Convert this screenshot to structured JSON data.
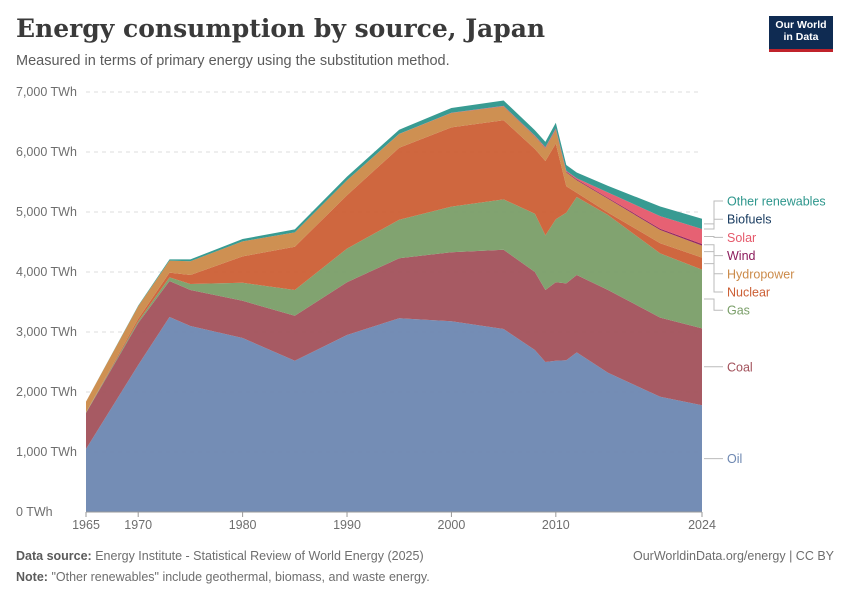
{
  "header": {
    "title": "Energy consumption by source, Japan",
    "subtitle": "Measured in terms of primary energy using the substitution method."
  },
  "logo": {
    "line1": "Our World",
    "line2": "in Data"
  },
  "footer": {
    "source_label": "Data source:",
    "source_text": "Energy Institute - Statistical Review of World Energy (2025)",
    "note_label": "Note:",
    "note_text": "\"Other renewables\" include geothermal, biomass, and waste energy.",
    "credit": "OurWorldinData.org/energy | CC BY"
  },
  "chart_data": {
    "type": "area",
    "stacked": true,
    "x_ticks": [
      1965,
      1970,
      1980,
      1990,
      2000,
      2010,
      2024
    ],
    "y_ticks": [
      0,
      1000,
      2000,
      3000,
      4000,
      5000,
      6000,
      7000
    ],
    "y_tick_labels": [
      "0 TWh",
      "1,000 TWh",
      "2,000 TWh",
      "3,000 TWh",
      "4,000 TWh",
      "5,000 TWh",
      "6,000 TWh",
      "7,000 TWh"
    ],
    "xlim": [
      1965,
      2024
    ],
    "ylim": [
      0,
      7000
    ],
    "grid": "horizontal dashed",
    "legend_placement": "right, labels at series end",
    "x": [
      1965,
      1970,
      1973,
      1975,
      1980,
      1985,
      1990,
      1995,
      2000,
      2005,
      2008,
      2009,
      2010,
      2011,
      2012,
      2015,
      2020,
      2024
    ],
    "series": [
      {
        "name": "Oil",
        "color": "#6d87b1",
        "values": [
          1050,
          2450,
          3250,
          3100,
          2900,
          2520,
          2950,
          3230,
          3180,
          3050,
          2700,
          2500,
          2520,
          2530,
          2660,
          2320,
          1920,
          1780
        ]
      },
      {
        "name": "Coal",
        "color": "#a2515b",
        "values": [
          600,
          700,
          600,
          600,
          620,
          750,
          880,
          1000,
          1150,
          1320,
          1300,
          1200,
          1310,
          1280,
          1290,
          1380,
          1320,
          1280
        ]
      },
      {
        "name": "Gas",
        "color": "#7a9e68",
        "values": [
          10,
          30,
          60,
          100,
          300,
          430,
          560,
          640,
          760,
          840,
          970,
          910,
          1050,
          1180,
          1300,
          1250,
          1070,
          980
        ]
      },
      {
        "name": "Nuclear",
        "color": "#cc5f35",
        "values": [
          0,
          40,
          80,
          150,
          440,
          720,
          890,
          1200,
          1320,
          1320,
          1080,
          1240,
          1260,
          440,
          70,
          40,
          170,
          200
        ]
      },
      {
        "name": "Hydropower",
        "color": "#cb8a49",
        "values": [
          180,
          210,
          200,
          230,
          250,
          240,
          250,
          230,
          240,
          230,
          210,
          210,
          230,
          230,
          210,
          230,
          220,
          200
        ]
      },
      {
        "name": "Wind",
        "color": "#8c1c5c",
        "values": [
          0,
          0,
          0,
          0,
          0,
          0,
          0,
          0,
          2,
          5,
          7,
          9,
          11,
          13,
          14,
          15,
          22,
          26
        ]
      },
      {
        "name": "Solar",
        "color": "#e5596b",
        "values": [
          0,
          0,
          0,
          0,
          0,
          0,
          0,
          1,
          2,
          4,
          6,
          9,
          12,
          16,
          20,
          90,
          210,
          250
        ]
      },
      {
        "name": "Biofuels",
        "color": "#173a5f",
        "values": [
          0,
          0,
          0,
          0,
          0,
          0,
          0,
          0,
          0,
          0,
          0,
          0,
          0,
          0,
          0,
          0,
          0,
          0
        ]
      },
      {
        "name": "Other renewables",
        "color": "#2d968c",
        "values": [
          0,
          10,
          20,
          30,
          40,
          50,
          60,
          70,
          80,
          90,
          90,
          90,
          95,
          95,
          95,
          110,
          160,
          170
        ]
      }
    ],
    "label_order_top_to_bottom": [
      "Other renewables",
      "Biofuels",
      "Solar",
      "Wind",
      "Hydropower",
      "Nuclear",
      "Gas",
      "Coal",
      "Oil"
    ]
  }
}
